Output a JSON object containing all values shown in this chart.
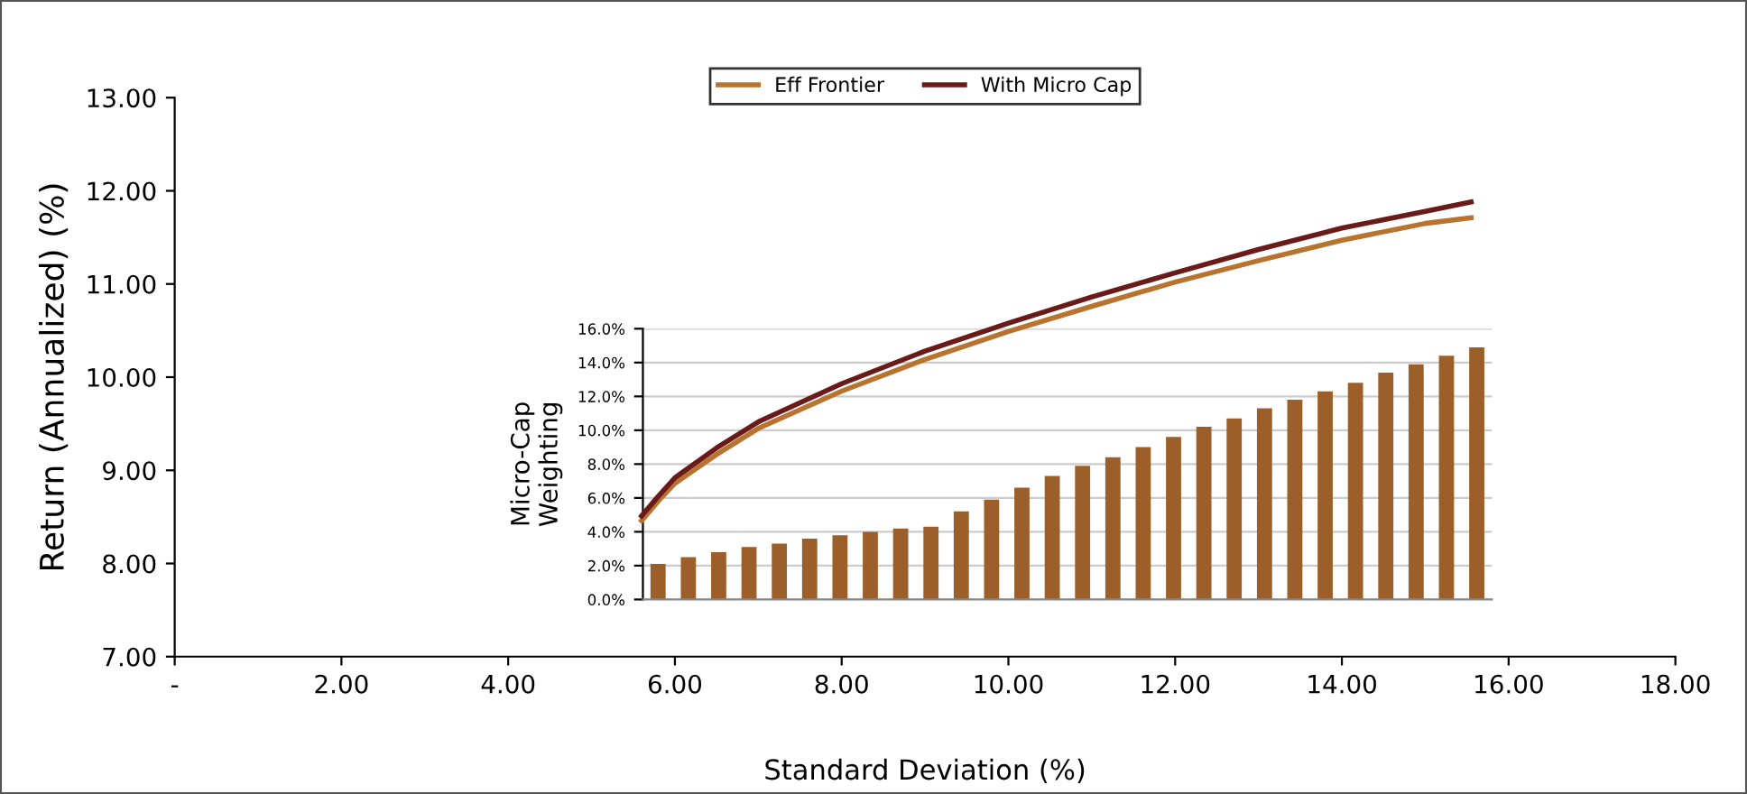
{
  "chart_data": [
    {
      "type": "line",
      "xlabel": "Standard Deviation (%)",
      "ylabel": "Return (Annualized) (%)",
      "xlim": [
        0,
        18
      ],
      "ylim": [
        7,
        13
      ],
      "xticks": [
        {
          "value": 0,
          "label": "-"
        },
        {
          "value": 2,
          "label": "2.00"
        },
        {
          "value": 4,
          "label": "4.00"
        },
        {
          "value": 6,
          "label": "6.00"
        },
        {
          "value": 8,
          "label": "8.00"
        },
        {
          "value": 10,
          "label": "10.00"
        },
        {
          "value": 12,
          "label": "12.00"
        },
        {
          "value": 14,
          "label": "14.00"
        },
        {
          "value": 16,
          "label": "16.00"
        },
        {
          "value": 18,
          "label": "18.00"
        }
      ],
      "yticks": [
        {
          "value": 7,
          "label": "7.00"
        },
        {
          "value": 8,
          "label": "8.00"
        },
        {
          "value": 9,
          "label": "9.00"
        },
        {
          "value": 10,
          "label": "10.00"
        },
        {
          "value": 11,
          "label": "11.00"
        },
        {
          "value": 12,
          "label": "12.00"
        },
        {
          "value": 13,
          "label": "13.00"
        }
      ],
      "x": [
        5.6,
        5.8,
        6,
        6.5,
        7,
        8,
        9,
        10,
        11,
        12,
        13,
        14,
        15,
        15.55
      ],
      "series": [
        {
          "name": "Eff Frontier",
          "color": "#b8732e",
          "values": [
            8.46,
            8.67,
            8.86,
            9.17,
            9.45,
            9.85,
            10.19,
            10.49,
            10.76,
            11.02,
            11.25,
            11.47,
            11.65,
            11.71
          ]
        },
        {
          "name": "With Micro Cap",
          "color": "#6b1a1a",
          "values": [
            8.51,
            8.72,
            8.92,
            9.24,
            9.52,
            9.93,
            10.28,
            10.58,
            10.86,
            11.12,
            11.37,
            11.6,
            11.78,
            11.88
          ]
        }
      ],
      "legend": "top",
      "grid": false,
      "line_style": "solid",
      "marker": "none"
    },
    {
      "type": "bar",
      "ylabel": "Micro-Cap\nWeighting",
      "ylim": [
        0,
        16
      ],
      "yticks": [
        {
          "value": 0,
          "label": "0.0%"
        },
        {
          "value": 2,
          "label": "2.0%"
        },
        {
          "value": 4,
          "label": "4.0%"
        },
        {
          "value": 6,
          "label": "6.0%"
        },
        {
          "value": 8,
          "label": "8.0%"
        },
        {
          "value": 10,
          "label": "10.0%"
        },
        {
          "value": 12,
          "label": "12.0%"
        },
        {
          "value": 14,
          "label": "14.0%"
        },
        {
          "value": 16,
          "label": "16.0%"
        }
      ],
      "categories": [
        null,
        null,
        null,
        null,
        null,
        null,
        null,
        null,
        null,
        null,
        null,
        null,
        null,
        null,
        null,
        null,
        null,
        null,
        null,
        null,
        null,
        null,
        null,
        null,
        null,
        null,
        null,
        null
      ],
      "color": "#9c5f2a",
      "values": [
        2.1,
        2.5,
        2.8,
        3.1,
        3.3,
        3.6,
        3.8,
        4.0,
        4.2,
        4.3,
        5.2,
        5.9,
        6.6,
        7.3,
        7.9,
        8.4,
        9.0,
        9.6,
        10.2,
        10.7,
        11.3,
        11.8,
        12.3,
        12.8,
        13.4,
        13.9,
        14.4,
        14.9
      ],
      "grid": "y",
      "tick_labels": "y"
    }
  ]
}
